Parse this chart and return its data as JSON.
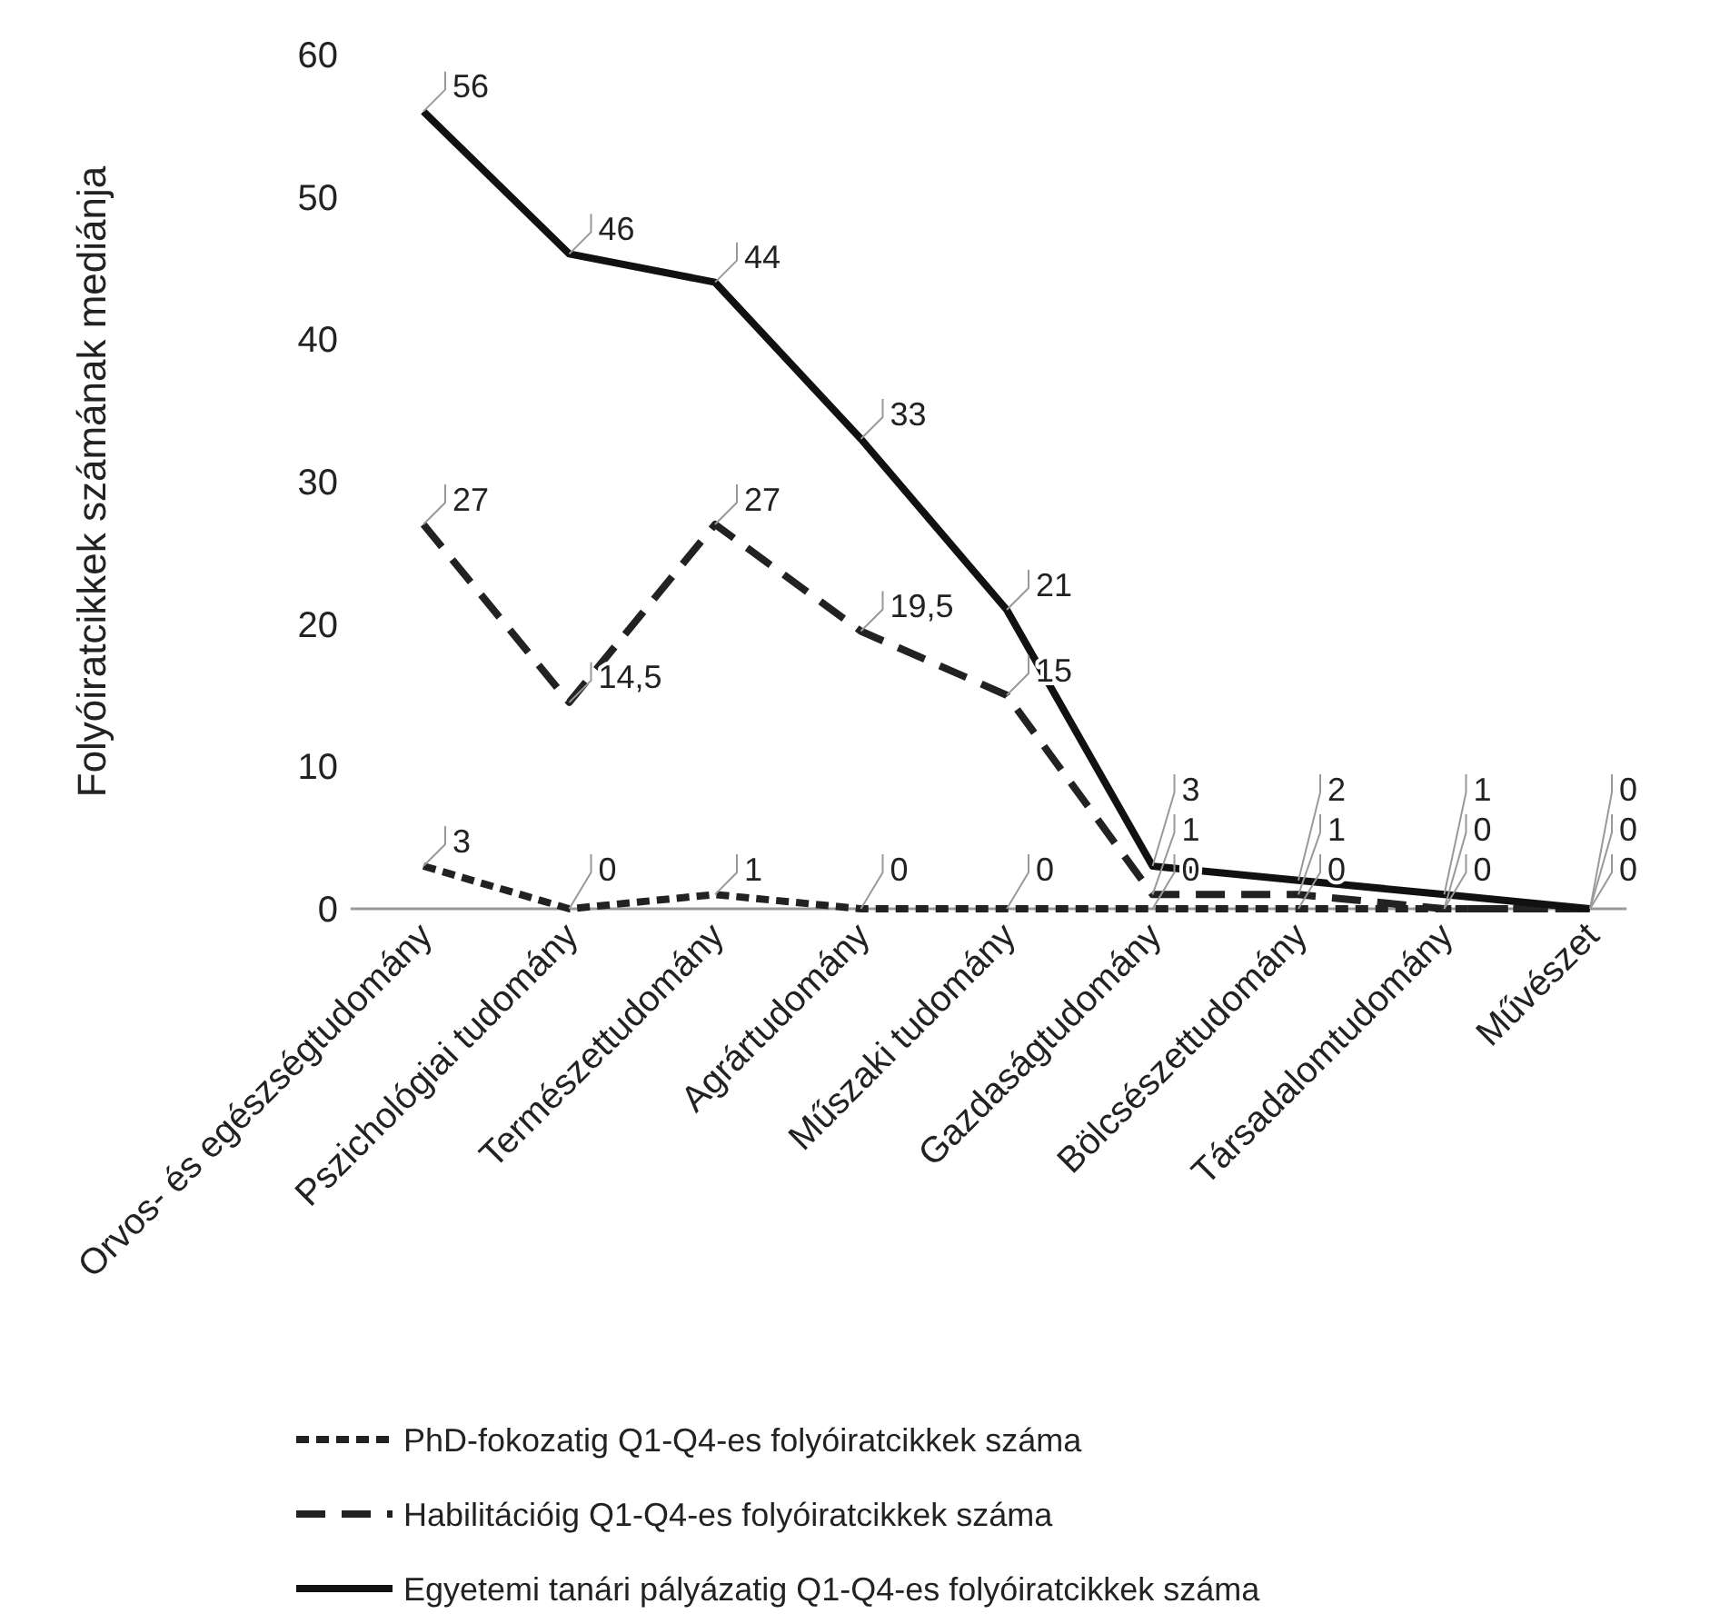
{
  "chart_data": {
    "type": "line",
    "ylabel": "Folyóiratcikkek számának mediánja",
    "categories": [
      "Orvos- és egészségtudomány",
      "Pszichológiai tudomány",
      "Természettudomány",
      "Agrártudomány",
      "Műszaki tudomány",
      "Gazdaságtudomány",
      "Bölcsészettudomány",
      "Társadalomtudomány",
      "Művészet"
    ],
    "ylim": [
      0,
      60
    ],
    "yticks": [
      0,
      10,
      20,
      30,
      40,
      50,
      60
    ],
    "grid": false,
    "legend": "bottom",
    "series": [
      {
        "name": "PhD-fokozatig Q1-Q4-es folyóiratcikkek száma",
        "color": "#222222",
        "line_style": "dotted",
        "values": [
          3,
          0,
          1,
          0,
          0,
          0,
          0,
          0,
          0
        ],
        "value_labels": [
          "3",
          "0",
          "1",
          "0",
          "0",
          "0",
          "0",
          "0",
          "0"
        ]
      },
      {
        "name": "Habilitációig Q1-Q4-es folyóiratcikkek száma",
        "color": "#222222",
        "line_style": "dashed",
        "values": [
          27,
          14.5,
          27,
          19.5,
          15,
          1,
          1,
          0,
          0
        ],
        "value_labels": [
          "27",
          "14,5",
          "27",
          "19,5",
          "15",
          "1",
          "1",
          "0",
          "0"
        ]
      },
      {
        "name": "Egyetemi tanári pályázatig Q1-Q4-es folyóiratcikkek száma",
        "color": "#111111",
        "line_style": "solid",
        "values": [
          56,
          46,
          44,
          33,
          21,
          3,
          2,
          1,
          0
        ],
        "value_labels": [
          "56",
          "46",
          "44",
          "33",
          "21",
          "3",
          "2",
          "1",
          "0"
        ]
      }
    ]
  }
}
